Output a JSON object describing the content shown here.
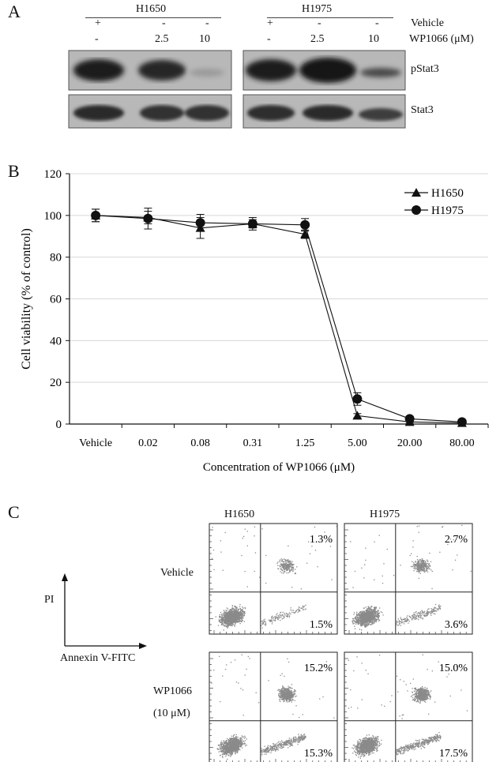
{
  "panelA": {
    "letter": "A",
    "groups": [
      {
        "name": "H1650",
        "vehicle": [
          "+",
          "-",
          "-"
        ],
        "dose": [
          "-",
          "2.5",
          "10"
        ]
      },
      {
        "name": "H1975",
        "vehicle": [
          "+",
          "-",
          "-"
        ],
        "dose": [
          "-",
          "2.5",
          "10"
        ]
      }
    ],
    "row_vehicle": "Vehicle",
    "row_dose": "WP1066 (μM)",
    "blot_labels": [
      "pStat3",
      "Stat3"
    ]
  },
  "panelB": {
    "letter": "B",
    "chart_data": {
      "type": "line",
      "categories": [
        "Vehicle",
        "0.02",
        "0.08",
        "0.31",
        "1.25",
        "5.00",
        "20.00",
        "80.00"
      ],
      "series": [
        {
          "name": "H1650",
          "marker": "triangle",
          "values": [
            100,
            99,
            94,
            96,
            91,
            4,
            1,
            0.5
          ],
          "errors": [
            3,
            3,
            5,
            2,
            2,
            1,
            0.5,
            0.5
          ]
        },
        {
          "name": "H1975",
          "marker": "circle",
          "values": [
            100,
            98.5,
            96.5,
            96,
            95.5,
            12,
            2.5,
            1
          ],
          "errors": [
            3,
            5,
            4,
            3,
            3,
            3,
            1,
            0.5
          ]
        }
      ],
      "xlabel": "Concentration of WP1066 (μM)",
      "ylabel": "Cell viability (% of control)",
      "ylim": [
        0,
        120
      ],
      "yticks": [
        0,
        20,
        40,
        60,
        80,
        100,
        120
      ],
      "grid": true,
      "legend": "top-right"
    }
  },
  "panelC": {
    "letter": "C",
    "columns": [
      "H1650",
      "H1975"
    ],
    "row_vehicle": "Vehicle",
    "row_treat": [
      "WP1066",
      "(10 μM)"
    ],
    "axis_y": "PI",
    "axis_x": "Annexin V-FITC",
    "plots": [
      {
        "upper": "1.3%",
        "lower": "1.5%",
        "density": 0.3
      },
      {
        "upper": "2.7%",
        "lower": "3.6%",
        "density": 0.5
      },
      {
        "upper": "15.2%",
        "lower": "15.3%",
        "density": 1.0
      },
      {
        "upper": "15.0%",
        "lower": "17.5%",
        "density": 1.0
      }
    ]
  }
}
